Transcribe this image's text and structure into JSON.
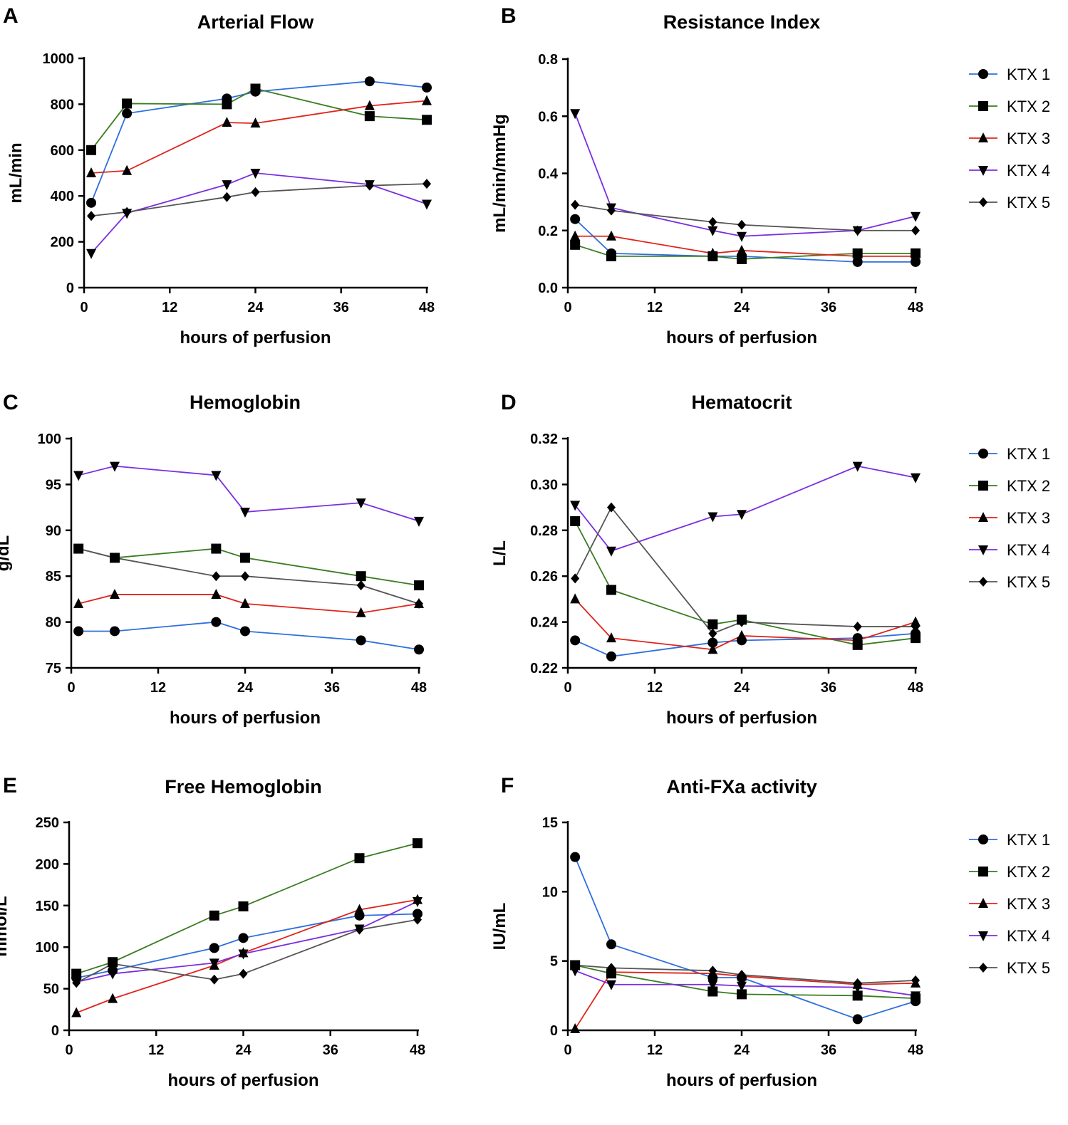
{
  "series_styles": [
    {
      "name": "KTX 1",
      "color": "#2f6fde",
      "marker": "circle"
    },
    {
      "name": "KTX 2",
      "color": "#3a7d22",
      "marker": "square"
    },
    {
      "name": "KTX 3",
      "color": "#e0241b",
      "marker": "triangle-up"
    },
    {
      "name": "KTX 4",
      "color": "#7b2ee0",
      "marker": "triangle-down"
    },
    {
      "name": "KTX 5",
      "color": "#555555",
      "marker": "diamond"
    }
  ],
  "chart_data": [
    {
      "panel": "A",
      "type": "line",
      "title": "Arterial Flow",
      "xlabel": "hours of perfusion",
      "ylabel": "mL/min",
      "xlim": [
        0,
        48
      ],
      "xticks": [
        "0",
        "12",
        "24",
        "36",
        "48"
      ],
      "ylim": [
        0,
        1000
      ],
      "yticks": [
        "0",
        "200",
        "400",
        "600",
        "800",
        "1000"
      ],
      "legend": false,
      "series": [
        {
          "name": "KTX 1",
          "x": [
            1,
            6,
            20,
            24,
            40,
            48
          ],
          "values": [
            370,
            760,
            825,
            855,
            900,
            873
          ]
        },
        {
          "name": "KTX 2",
          "x": [
            1,
            6,
            20,
            24,
            40,
            48
          ],
          "values": [
            600,
            803,
            800,
            868,
            748,
            732
          ]
        },
        {
          "name": "KTX 3",
          "x": [
            1,
            6,
            20,
            24,
            40,
            48
          ],
          "values": [
            500,
            510,
            720,
            717,
            793,
            815
          ]
        },
        {
          "name": "KTX 4",
          "x": [
            1,
            6,
            20,
            24,
            40,
            48
          ],
          "values": [
            150,
            325,
            450,
            500,
            450,
            365
          ]
        },
        {
          "name": "KTX 5",
          "x": [
            1,
            6,
            20,
            24,
            40,
            48
          ],
          "values": [
            313,
            330,
            395,
            417,
            445,
            453
          ]
        }
      ]
    },
    {
      "panel": "B",
      "type": "line",
      "title": "Resistance Index",
      "xlabel": "hours of perfusion",
      "ylabel": "mL/min/mmHg",
      "xlim": [
        0,
        48
      ],
      "xticks": [
        "0",
        "12",
        "24",
        "36",
        "48"
      ],
      "ylim": [
        0,
        0.8
      ],
      "yticks": [
        "0.0",
        "0.2",
        "0.4",
        "0.6",
        "0.8"
      ],
      "legend": true,
      "series": [
        {
          "name": "KTX 1",
          "x": [
            1,
            6,
            20,
            24,
            40,
            48
          ],
          "values": [
            0.24,
            0.12,
            0.11,
            0.11,
            0.09,
            0.09
          ]
        },
        {
          "name": "KTX 2",
          "x": [
            1,
            6,
            20,
            24,
            40,
            48
          ],
          "values": [
            0.15,
            0.11,
            0.11,
            0.1,
            0.12,
            0.12
          ]
        },
        {
          "name": "KTX 3",
          "x": [
            1,
            6,
            20,
            24,
            40,
            48
          ],
          "values": [
            0.18,
            0.18,
            0.12,
            0.13,
            0.11,
            0.11
          ]
        },
        {
          "name": "KTX 4",
          "x": [
            1,
            6,
            20,
            24,
            40,
            48
          ],
          "values": [
            0.61,
            0.28,
            0.2,
            0.18,
            0.2,
            0.25
          ]
        },
        {
          "name": "KTX 5",
          "x": [
            1,
            6,
            20,
            24,
            40,
            48
          ],
          "values": [
            0.29,
            0.27,
            0.23,
            0.22,
            0.2,
            0.2
          ]
        }
      ]
    },
    {
      "panel": "C",
      "type": "line",
      "title": "Hemoglobin",
      "xlabel": "hours of perfusion",
      "ylabel": "g/dL",
      "xlim": [
        0,
        48
      ],
      "xticks": [
        "0",
        "12",
        "24",
        "36",
        "48"
      ],
      "ylim": [
        75,
        100
      ],
      "yticks": [
        "75",
        "80",
        "85",
        "90",
        "95",
        "100"
      ],
      "legend": false,
      "series": [
        {
          "name": "KTX 1",
          "x": [
            1,
            6,
            20,
            24,
            40,
            48
          ],
          "values": [
            79,
            79,
            80,
            79,
            78,
            77
          ]
        },
        {
          "name": "KTX 2",
          "x": [
            1,
            6,
            20,
            24,
            40,
            48
          ],
          "values": [
            88,
            87,
            88,
            87,
            85,
            84
          ]
        },
        {
          "name": "KTX 3",
          "x": [
            1,
            6,
            20,
            24,
            40,
            48
          ],
          "values": [
            82,
            83,
            83,
            82,
            81,
            82
          ]
        },
        {
          "name": "KTX 4",
          "x": [
            1,
            6,
            20,
            24,
            40,
            48
          ],
          "values": [
            96,
            97,
            96,
            92,
            93,
            91
          ]
        },
        {
          "name": "KTX 5",
          "x": [
            1,
            6,
            20,
            24,
            40,
            48
          ],
          "values": [
            88,
            87,
            85,
            85,
            84,
            82
          ]
        }
      ]
    },
    {
      "panel": "D",
      "type": "line",
      "title": "Hematocrit",
      "xlabel": "hours of perfusion",
      "ylabel": "L/L",
      "xlim": [
        0,
        48
      ],
      "xticks": [
        "0",
        "12",
        "24",
        "36",
        "48"
      ],
      "ylim": [
        0.22,
        0.32
      ],
      "yticks": [
        "0.22",
        "0.24",
        "0.26",
        "0.28",
        "0.30",
        "0.32"
      ],
      "legend": true,
      "series": [
        {
          "name": "KTX 1",
          "x": [
            1,
            6,
            20,
            24,
            40,
            48
          ],
          "values": [
            0.232,
            0.225,
            0.231,
            0.232,
            0.233,
            0.235
          ]
        },
        {
          "name": "KTX 2",
          "x": [
            1,
            6,
            20,
            24,
            40,
            48
          ],
          "values": [
            0.284,
            0.254,
            0.239,
            0.241,
            0.23,
            0.233
          ]
        },
        {
          "name": "KTX 3",
          "x": [
            1,
            6,
            20,
            24,
            40,
            48
          ],
          "values": [
            0.25,
            0.233,
            0.228,
            0.234,
            0.232,
            0.24
          ]
        },
        {
          "name": "KTX 4",
          "x": [
            1,
            6,
            20,
            24,
            40,
            48
          ],
          "values": [
            0.291,
            0.271,
            0.286,
            0.287,
            0.308,
            0.303
          ]
        },
        {
          "name": "KTX 5",
          "x": [
            1,
            6,
            20,
            24,
            40,
            48
          ],
          "values": [
            0.259,
            0.29,
            0.235,
            0.24,
            0.238,
            0.238
          ]
        }
      ]
    },
    {
      "panel": "E",
      "type": "line",
      "title": "Free Hemoglobin",
      "xlabel": "hours of perfusion",
      "ylabel": "mmol/L",
      "xlim": [
        0,
        48
      ],
      "xticks": [
        "0",
        "12",
        "24",
        "36",
        "48"
      ],
      "ylim": [
        0,
        250
      ],
      "yticks": [
        "0",
        "50",
        "100",
        "150",
        "200",
        "250"
      ],
      "legend": false,
      "series": [
        {
          "name": "KTX 1",
          "x": [
            1,
            6,
            20,
            24,
            40,
            48
          ],
          "values": [
            63,
            72,
            99,
            111,
            138,
            140
          ]
        },
        {
          "name": "KTX 2",
          "x": [
            1,
            6,
            20,
            24,
            40,
            48
          ],
          "values": [
            68,
            82,
            138,
            149,
            207,
            225
          ]
        },
        {
          "name": "KTX 3",
          "x": [
            1,
            6,
            20,
            24,
            40,
            48
          ],
          "values": [
            21,
            38,
            78,
            93,
            145,
            157
          ]
        },
        {
          "name": "KTX 4",
          "x": [
            1,
            6,
            20,
            24,
            40,
            48
          ],
          "values": [
            58,
            68,
            81,
            92,
            122,
            155
          ]
        },
        {
          "name": "KTX 5",
          "x": [
            1,
            6,
            20,
            24,
            40,
            48
          ],
          "values": [
            57,
            80,
            61,
            68,
            121,
            133
          ]
        }
      ]
    },
    {
      "panel": "F",
      "type": "line",
      "title": "Anti-FXa activity",
      "xlabel": "hours of perfusion",
      "ylabel": "IU/mL",
      "xlim": [
        0,
        48
      ],
      "xticks": [
        "0",
        "12",
        "24",
        "36",
        "48"
      ],
      "ylim": [
        0,
        15
      ],
      "yticks": [
        "0",
        "5",
        "10",
        "15"
      ],
      "legend": true,
      "series": [
        {
          "name": "KTX 1",
          "x": [
            1,
            6,
            20,
            24,
            40,
            48
          ],
          "values": [
            12.5,
            6.2,
            3.8,
            3.8,
            0.8,
            2.1
          ]
        },
        {
          "name": "KTX 2",
          "x": [
            1,
            6,
            20,
            24,
            40,
            48
          ],
          "values": [
            4.7,
            4.1,
            2.8,
            2.6,
            2.5,
            2.3
          ]
        },
        {
          "name": "KTX 3",
          "x": [
            1,
            6,
            20,
            24,
            40,
            48
          ],
          "values": [
            0.1,
            4.2,
            4.1,
            3.9,
            3.3,
            3.4
          ]
        },
        {
          "name": "KTX 4",
          "x": [
            1,
            6,
            20,
            24,
            40,
            48
          ],
          "values": [
            4.3,
            3.3,
            3.3,
            3.2,
            3.1,
            2.5
          ]
        },
        {
          "name": "KTX 5",
          "x": [
            1,
            6,
            20,
            24,
            40,
            48
          ],
          "values": [
            4.7,
            4.5,
            4.3,
            4.0,
            3.4,
            3.6
          ]
        }
      ]
    }
  ]
}
